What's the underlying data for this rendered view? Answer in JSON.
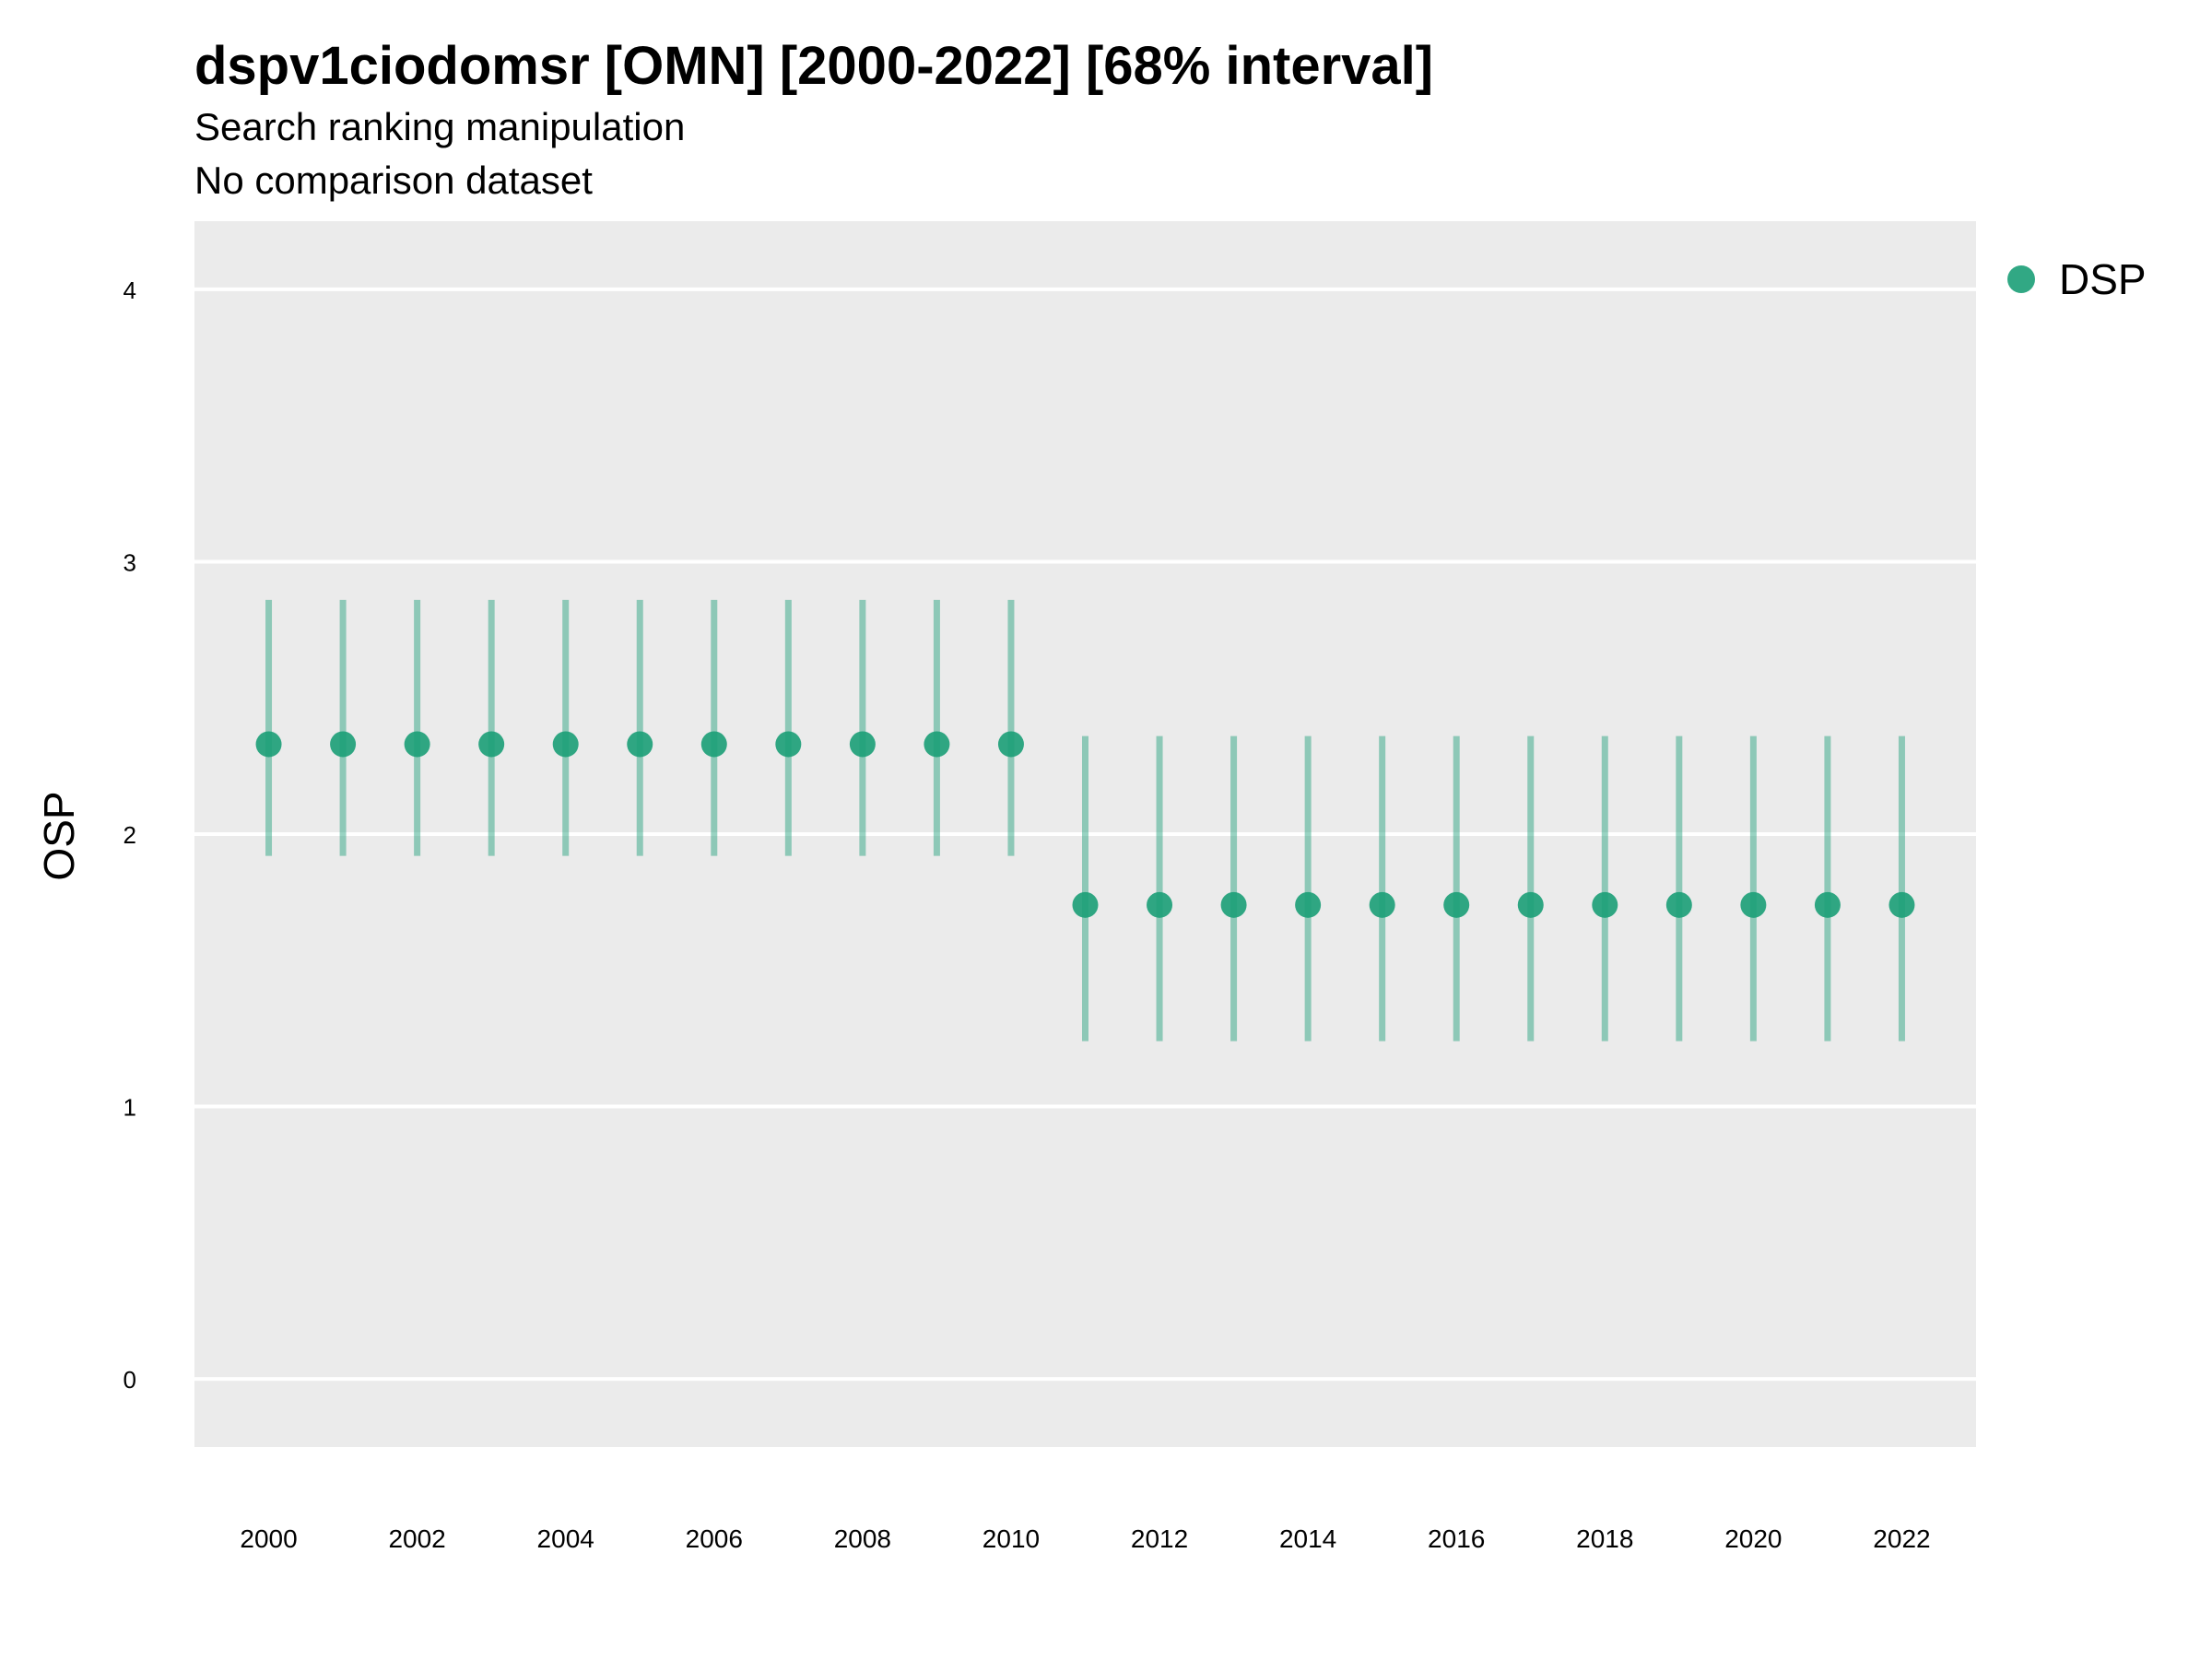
{
  "title": "dspv1ciodomsr [OMN] [2000-2022] [68% interval]",
  "subtitle_lines": [
    "Search ranking manipulation",
    "No comparison dataset"
  ],
  "colors": {
    "series": "#1b9e77",
    "panel": "#ebebeb",
    "grid": "#ffffff"
  },
  "legend": {
    "label": "DSP",
    "position": "right-top"
  },
  "chart_data": {
    "type": "scatter",
    "title": "dspv1ciodomsr [OMN] [2000-2022] [68% interval]",
    "subtitle": [
      "Search ranking manipulation",
      "No comparison dataset"
    ],
    "xlabel": "",
    "ylabel": "OSP",
    "xlim": [
      1999,
      2023
    ],
    "ylim": [
      -0.25,
      4.25
    ],
    "xticks": [
      2000,
      2002,
      2004,
      2006,
      2008,
      2010,
      2012,
      2014,
      2016,
      2018,
      2020,
      2022
    ],
    "yticks": [
      0,
      1,
      2,
      3,
      4
    ],
    "grid": true,
    "legend": "right-top",
    "series": [
      {
        "name": "DSP",
        "x": [
          2000,
          2001,
          2002,
          2003,
          2004,
          2005,
          2006,
          2007,
          2008,
          2009,
          2010,
          2011,
          2012,
          2013,
          2014,
          2015,
          2016,
          2017,
          2018,
          2019,
          2020,
          2021,
          2022
        ],
        "y": [
          2.33,
          2.33,
          2.33,
          2.33,
          2.33,
          2.33,
          2.33,
          2.33,
          2.33,
          2.33,
          2.33,
          1.74,
          1.74,
          1.74,
          1.74,
          1.74,
          1.74,
          1.74,
          1.74,
          1.74,
          1.74,
          1.74,
          1.74
        ],
        "lower": [
          1.92,
          1.92,
          1.92,
          1.92,
          1.92,
          1.92,
          1.92,
          1.92,
          1.92,
          1.92,
          1.92,
          1.24,
          1.24,
          1.24,
          1.24,
          1.24,
          1.24,
          1.24,
          1.24,
          1.24,
          1.24,
          1.24,
          1.24
        ],
        "upper": [
          2.86,
          2.86,
          2.86,
          2.86,
          2.86,
          2.86,
          2.86,
          2.86,
          2.86,
          2.86,
          2.86,
          2.36,
          2.36,
          2.36,
          2.36,
          2.36,
          2.36,
          2.36,
          2.36,
          2.36,
          2.36,
          2.36,
          2.36
        ]
      }
    ]
  }
}
